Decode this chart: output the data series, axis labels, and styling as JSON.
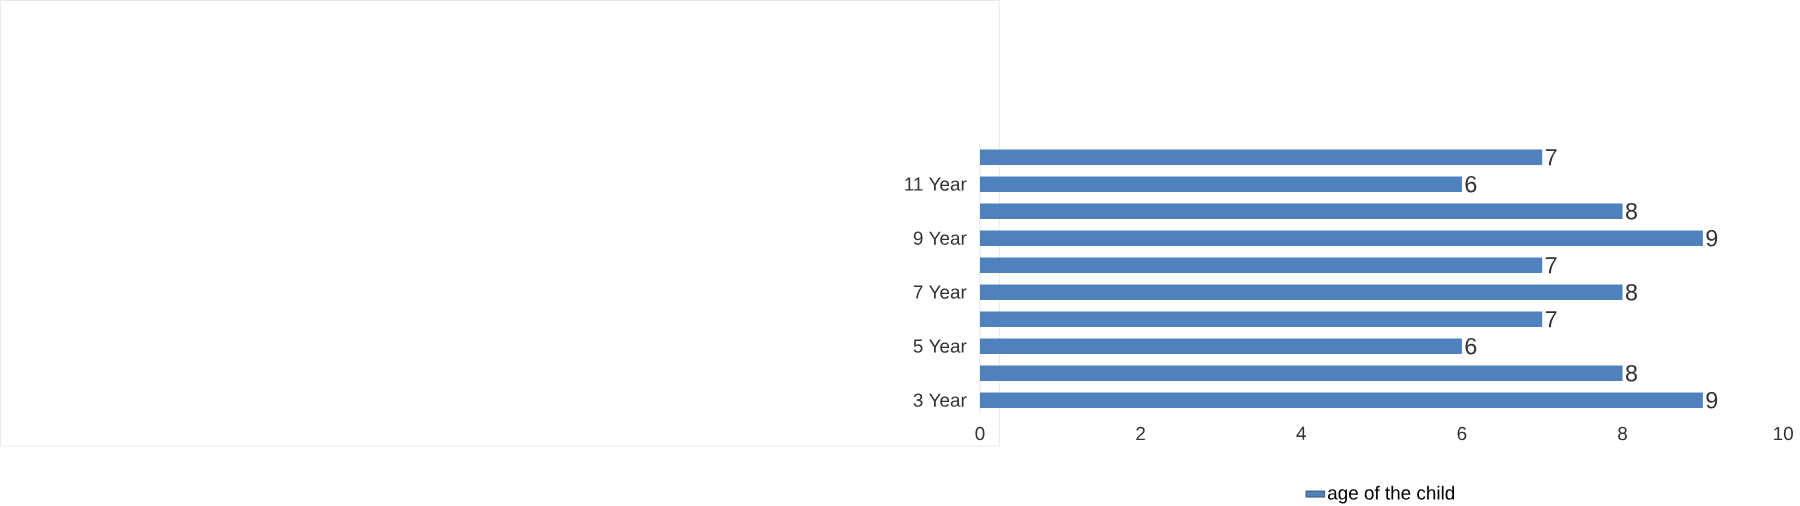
{
  "chart_data": {
    "type": "bar",
    "orientation": "horizontal",
    "categories": [
      null,
      "11 Year",
      null,
      "9 Year",
      null,
      "7 Year",
      null,
      "5 Year",
      null,
      "3 Year"
    ],
    "series": [
      {
        "name": "age of the child",
        "color": "#4f81bd",
        "values": [
          7,
          6,
          8,
          9,
          7,
          8,
          7,
          6,
          8,
          9
        ]
      }
    ],
    "xlim": [
      0,
      10
    ],
    "xticks": [
      0,
      2,
      4,
      6,
      8,
      10
    ],
    "data_labels": true,
    "legend": "bottom",
    "grid": false
  }
}
